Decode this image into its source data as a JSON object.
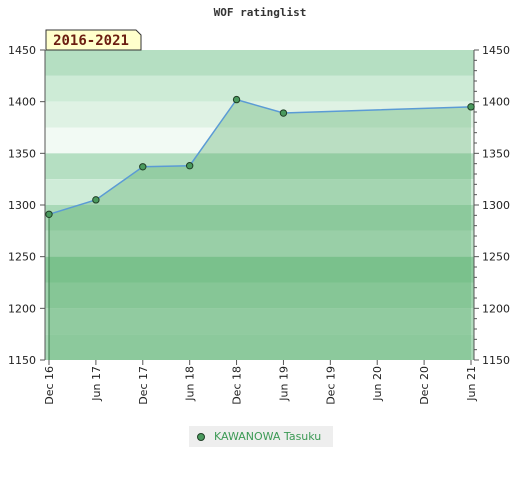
{
  "chart_data": {
    "type": "area",
    "title": "WOF ratinglist",
    "period_label": "2016-2021",
    "ylim": [
      1150,
      1450
    ],
    "y_ticks": [
      1150,
      1200,
      1250,
      1300,
      1350,
      1400,
      1450
    ],
    "x_tick_labels": [
      "Dec 16",
      "Jun 17",
      "Dec 17",
      "Jun 18",
      "Dec 18",
      "Jun 19",
      "Dec 19",
      "Jun 20",
      "Dec 20",
      "Jun 21"
    ],
    "series": [
      {
        "name": "KAWANOWA Tasuku",
        "x": [
          "Dec 16",
          "Jun 17",
          "Dec 17",
          "Jun 18",
          "Dec 18",
          "Jun 19",
          "Jun 21"
        ],
        "values": [
          1291,
          1305,
          1337,
          1338,
          1402,
          1389,
          1395
        ],
        "color": "#4a9a5e",
        "line_color": "#5b9bd5"
      }
    ],
    "band_colors": [
      "#9fd3ad",
      "#8ccb9d",
      "#7ac08e",
      "#ccebd6",
      "#f0f9f2",
      "#b5dfc2"
    ],
    "grid": true,
    "legend_position": "bottom-center"
  }
}
